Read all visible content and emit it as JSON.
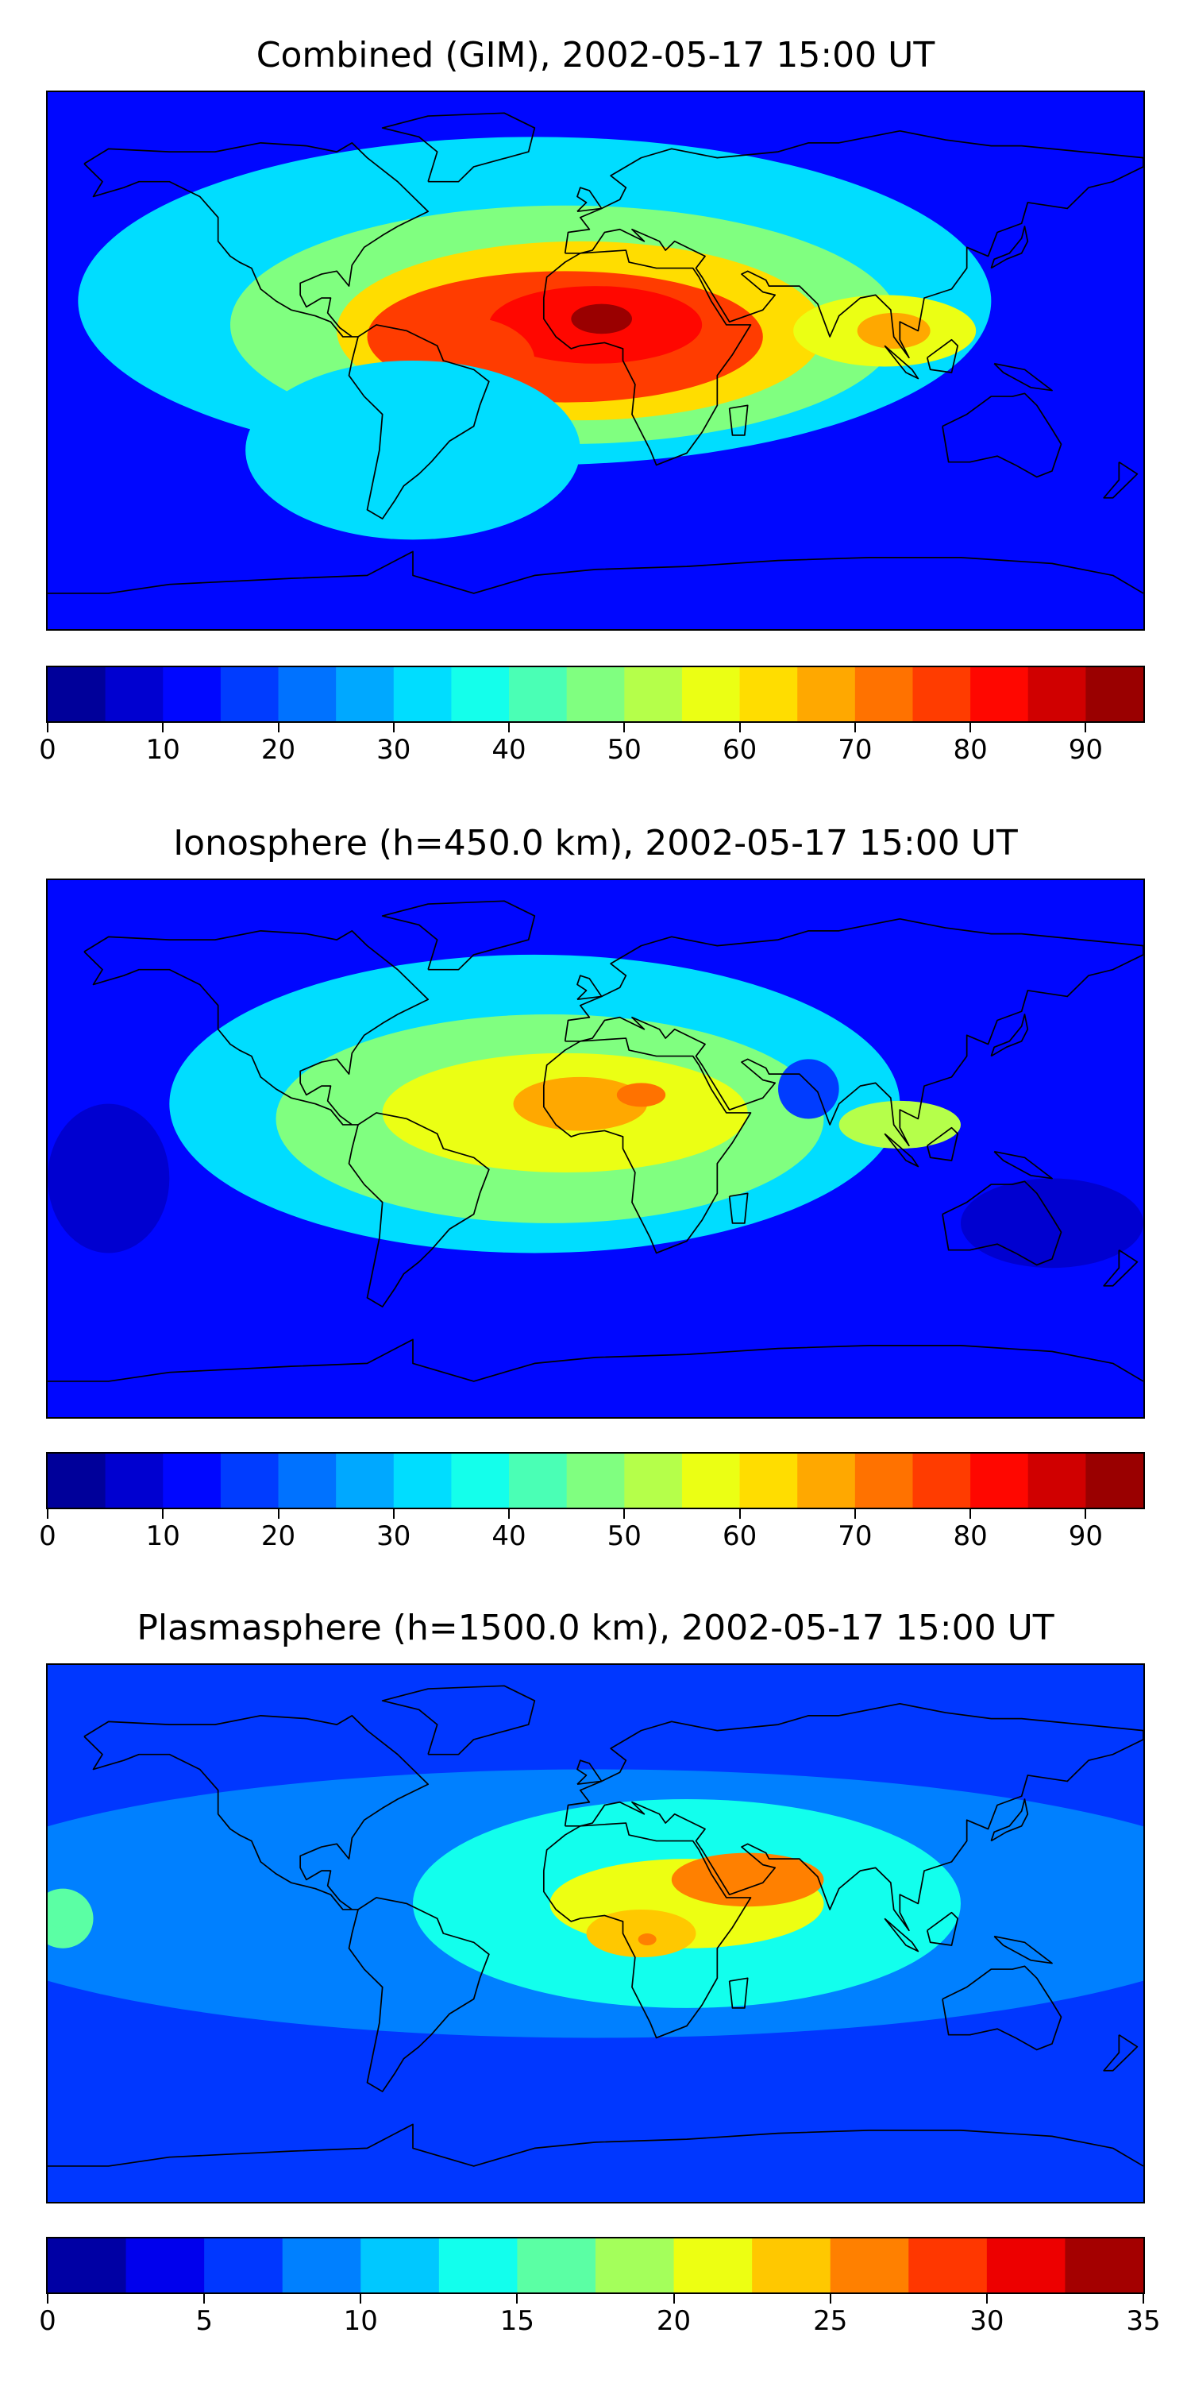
{
  "panels": [
    {
      "title": "Combined (GIM), 2002-05-17 15:00 UT",
      "colorbar": {
        "min": 0,
        "max": 95,
        "step": 5,
        "ticks": [
          0,
          10,
          20,
          30,
          40,
          50,
          60,
          70,
          80,
          90
        ],
        "tick_labels": [
          "0",
          "10",
          "20",
          "30",
          "40",
          "50",
          "60",
          "70",
          "80",
          "90"
        ]
      },
      "field": {
        "background": 12,
        "features": [
          {
            "lon": -20,
            "lat": 20,
            "rx": 150,
            "ry": 55,
            "value": 30
          },
          {
            "lon": -10,
            "lat": 12,
            "rx": 110,
            "ry": 40,
            "value": 45
          },
          {
            "lon": -5,
            "lat": 10,
            "rx": 80,
            "ry": 30,
            "value": 60
          },
          {
            "lon": -10,
            "lat": 8,
            "rx": 65,
            "ry": 22,
            "value": 75
          },
          {
            "lon": 0,
            "lat": 12,
            "rx": 35,
            "ry": 13,
            "value": 82
          },
          {
            "lon": 2,
            "lat": 14,
            "rx": 10,
            "ry": 5,
            "value": 92
          },
          {
            "lon": -45,
            "lat": 0,
            "rx": 25,
            "ry": 15,
            "value": 78
          },
          {
            "lon": 95,
            "lat": 10,
            "rx": 30,
            "ry": 12,
            "value": 55
          },
          {
            "lon": 98,
            "lat": 10,
            "rx": 12,
            "ry": 6,
            "value": 68
          },
          {
            "lon": -60,
            "lat": -30,
            "rx": 55,
            "ry": 30,
            "value": 32
          }
        ]
      }
    },
    {
      "title": "Ionosphere  (h=450.0 km), 2002-05-17 15:00 UT",
      "colorbar": {
        "min": 0,
        "max": 95,
        "step": 5,
        "ticks": [
          0,
          10,
          20,
          30,
          40,
          50,
          60,
          70,
          80,
          90
        ],
        "tick_labels": [
          "0",
          "10",
          "20",
          "30",
          "40",
          "50",
          "60",
          "70",
          "80",
          "90"
        ]
      },
      "field": {
        "background": 10,
        "features": [
          {
            "lon": -20,
            "lat": 15,
            "rx": 120,
            "ry": 50,
            "value": 30
          },
          {
            "lon": -15,
            "lat": 10,
            "rx": 90,
            "ry": 35,
            "value": 45
          },
          {
            "lon": -10,
            "lat": 12,
            "rx": 60,
            "ry": 20,
            "value": 58
          },
          {
            "lon": -5,
            "lat": 15,
            "rx": 22,
            "ry": 9,
            "value": 66
          },
          {
            "lon": 15,
            "lat": 18,
            "rx": 8,
            "ry": 4,
            "value": 72
          },
          {
            "lon": 100,
            "lat": 8,
            "rx": 20,
            "ry": 8,
            "value": 50
          },
          {
            "lon": 70,
            "lat": 20,
            "rx": 10,
            "ry": 10,
            "value": 15
          },
          {
            "lon": -160,
            "lat": -10,
            "rx": 20,
            "ry": 25,
            "value": 5
          },
          {
            "lon": 150,
            "lat": -25,
            "rx": 30,
            "ry": 15,
            "value": 6
          }
        ]
      }
    },
    {
      "title": "Plasmasphere (h=1500.0 km), 2002-05-17 15:00 UT",
      "colorbar": {
        "min": 0,
        "max": 35,
        "step": 2.5,
        "ticks": [
          0,
          5,
          10,
          15,
          20,
          25,
          30,
          35
        ],
        "tick_labels": [
          "0",
          "5",
          "10",
          "15",
          "20",
          "25",
          "30",
          "35"
        ]
      },
      "field": {
        "background": 5,
        "features": [
          {
            "lon": 0,
            "lat": 10,
            "rx": 220,
            "ry": 45,
            "value": 9
          },
          {
            "lon": 30,
            "lat": 10,
            "rx": 90,
            "ry": 35,
            "value": 14
          },
          {
            "lon": 30,
            "lat": 10,
            "rx": 45,
            "ry": 15,
            "value": 20
          },
          {
            "lon": 15,
            "lat": 0,
            "rx": 18,
            "ry": 8,
            "value": 24
          },
          {
            "lon": 17,
            "lat": -2,
            "rx": 3,
            "ry": 2,
            "value": 27
          },
          {
            "lon": 50,
            "lat": 18,
            "rx": 25,
            "ry": 9,
            "value": 25
          },
          {
            "lon": 57,
            "lat": 20,
            "rx": 6,
            "ry": 4,
            "value": 27
          },
          {
            "lon": -175,
            "lat": 5,
            "rx": 10,
            "ry": 10,
            "value": 15
          },
          {
            "lon": -176,
            "lat": 5,
            "rx": 4,
            "ry": 3,
            "value": 17
          }
        ]
      }
    }
  ]
}
